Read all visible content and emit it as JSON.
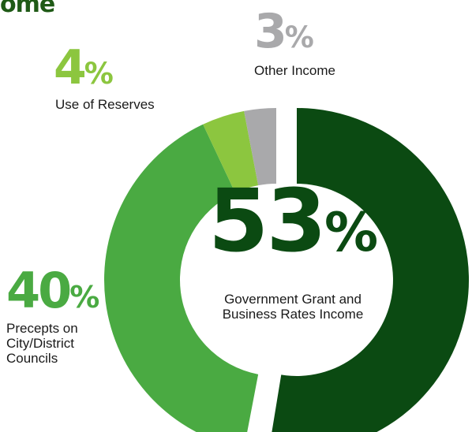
{
  "header": {
    "title_fragment": "ome"
  },
  "colors": {
    "government": "#0b4a12",
    "precepts": "#4aaa42",
    "reserves": "#8cc63f",
    "other": "#a9a9ab",
    "heading": "#1f5a16"
  },
  "chart_data": {
    "type": "pie",
    "variant": "donut",
    "start": "top, going clockwise",
    "legend": "none; labels beside each slice",
    "slices": [
      {
        "id": "government",
        "percent_label": "53%",
        "number": "53",
        "label_lines": [
          "Government Grant and",
          "Business Rates Income"
        ],
        "value": 53,
        "color": "#0b4a12",
        "exploded": true
      },
      {
        "id": "precepts",
        "percent_label": "40%",
        "number": "40",
        "label_lines": [
          "Precepts on",
          "City/District",
          "Councils"
        ],
        "value": 40,
        "color": "#4aaa42",
        "exploded": false
      },
      {
        "id": "reserves",
        "percent_label": "4%",
        "number": "4",
        "label_lines": [
          "Use of Reserves"
        ],
        "value": 4,
        "color": "#8cc63f",
        "exploded": false
      },
      {
        "id": "other",
        "percent_label": "3%",
        "number": "3",
        "label_lines": [
          "Other Income"
        ],
        "value": 3,
        "color": "#a9a9ab",
        "exploded": false
      }
    ]
  }
}
